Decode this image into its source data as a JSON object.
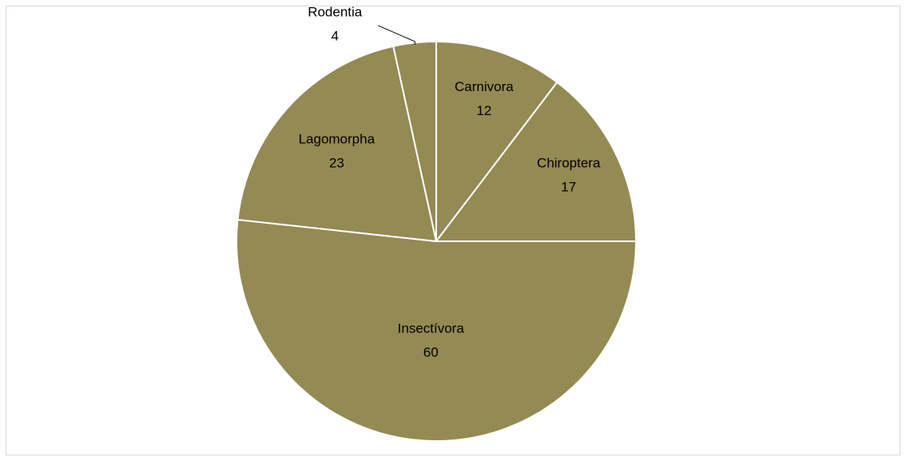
{
  "chart_data": {
    "type": "pie",
    "categories": [
      "Carnivora",
      "Chiroptera",
      "Insectívora",
      "Lagomorpha",
      "Rodentia"
    ],
    "values": [
      12,
      17,
      60,
      23,
      4
    ],
    "color": "#948a54"
  }
}
